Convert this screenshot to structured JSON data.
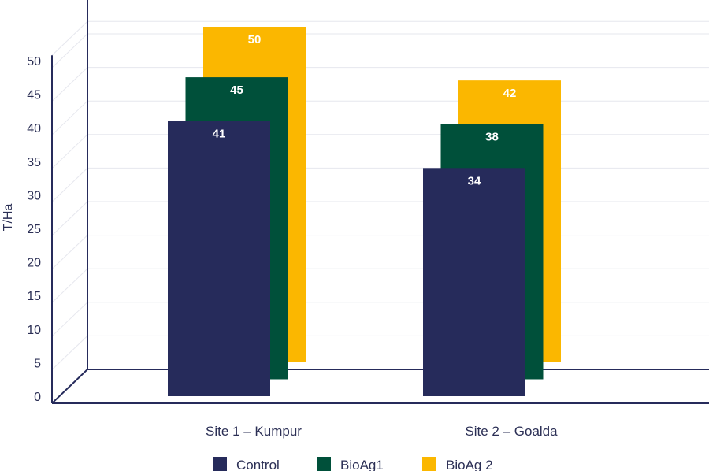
{
  "chart_data": {
    "type": "bar",
    "categories": [
      "Site 1 – Kumpur",
      "Site 2 – Goalda"
    ],
    "series": [
      {
        "name": "Control",
        "values": [
          41,
          34
        ],
        "color": "#262b5b"
      },
      {
        "name": "BioAg1",
        "values": [
          45,
          38
        ],
        "color": "#00503a"
      },
      {
        "name": "BioAg 2",
        "values": [
          50,
          42
        ],
        "color": "#fbb700"
      }
    ],
    "xlabel": "",
    "ylabel": "T/Ha",
    "ylim": [
      0,
      50
    ],
    "yticks": [
      "0",
      "5",
      "10",
      "15",
      "20",
      "25",
      "30",
      "35",
      "40",
      "45",
      "50"
    ],
    "grid": true,
    "legend_position": "bottom",
    "style": "3d-perspective"
  }
}
